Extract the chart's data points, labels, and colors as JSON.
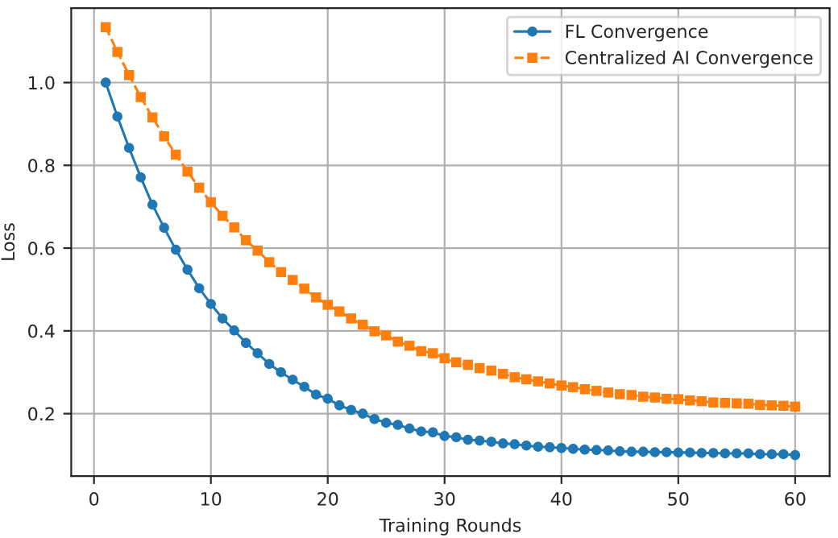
{
  "chart_data": {
    "type": "line",
    "xlabel": "Training Rounds",
    "ylabel": "Loss",
    "x": [
      1,
      2,
      3,
      4,
      5,
      6,
      7,
      8,
      9,
      10,
      11,
      12,
      13,
      14,
      15,
      16,
      17,
      18,
      19,
      20,
      21,
      22,
      23,
      24,
      25,
      26,
      27,
      28,
      29,
      30,
      31,
      32,
      33,
      34,
      35,
      36,
      37,
      38,
      39,
      40,
      41,
      42,
      43,
      44,
      45,
      46,
      47,
      48,
      49,
      50,
      51,
      52,
      53,
      54,
      55,
      56,
      57,
      58,
      59,
      60
    ],
    "series": [
      {
        "name": "FL Convergence",
        "color": "#1f77b4",
        "marker": "circle",
        "line_style": "solid",
        "values": [
          1.0,
          0.918,
          0.842,
          0.771,
          0.705,
          0.649,
          0.596,
          0.548,
          0.503,
          0.465,
          0.43,
          0.401,
          0.371,
          0.346,
          0.32,
          0.3,
          0.282,
          0.265,
          0.246,
          0.236,
          0.22,
          0.209,
          0.2,
          0.187,
          0.178,
          0.173,
          0.164,
          0.157,
          0.155,
          0.146,
          0.143,
          0.137,
          0.135,
          0.132,
          0.128,
          0.126,
          0.123,
          0.12,
          0.119,
          0.117,
          0.115,
          0.113,
          0.112,
          0.111,
          0.109,
          0.108,
          0.108,
          0.107,
          0.107,
          0.106,
          0.106,
          0.105,
          0.105,
          0.104,
          0.104,
          0.104,
          0.102,
          0.102,
          0.102,
          0.1
        ]
      },
      {
        "name": "Centralized AI Convergence",
        "color": "#ff7f0e",
        "marker": "square",
        "line_style": "dashed",
        "values": [
          1.134,
          1.074,
          1.018,
          0.965,
          0.916,
          0.87,
          0.826,
          0.785,
          0.746,
          0.711,
          0.678,
          0.65,
          0.619,
          0.594,
          0.566,
          0.542,
          0.523,
          0.502,
          0.481,
          0.463,
          0.447,
          0.43,
          0.415,
          0.399,
          0.389,
          0.374,
          0.364,
          0.351,
          0.346,
          0.334,
          0.324,
          0.318,
          0.31,
          0.304,
          0.296,
          0.288,
          0.283,
          0.278,
          0.273,
          0.268,
          0.264,
          0.259,
          0.255,
          0.251,
          0.247,
          0.245,
          0.241,
          0.239,
          0.236,
          0.235,
          0.232,
          0.23,
          0.227,
          0.226,
          0.225,
          0.224,
          0.221,
          0.22,
          0.219,
          0.217
        ]
      }
    ],
    "xlim": [
      -1.95,
      62.95
    ],
    "ylim": [
      0.049,
      1.18
    ],
    "xticks": [
      0,
      10,
      20,
      30,
      40,
      50,
      60
    ],
    "yticks": [
      0.2,
      0.4,
      0.6,
      0.8,
      {
        "value": 1.0,
        "label": "1.0"
      }
    ],
    "grid": true,
    "legend": "top right"
  }
}
